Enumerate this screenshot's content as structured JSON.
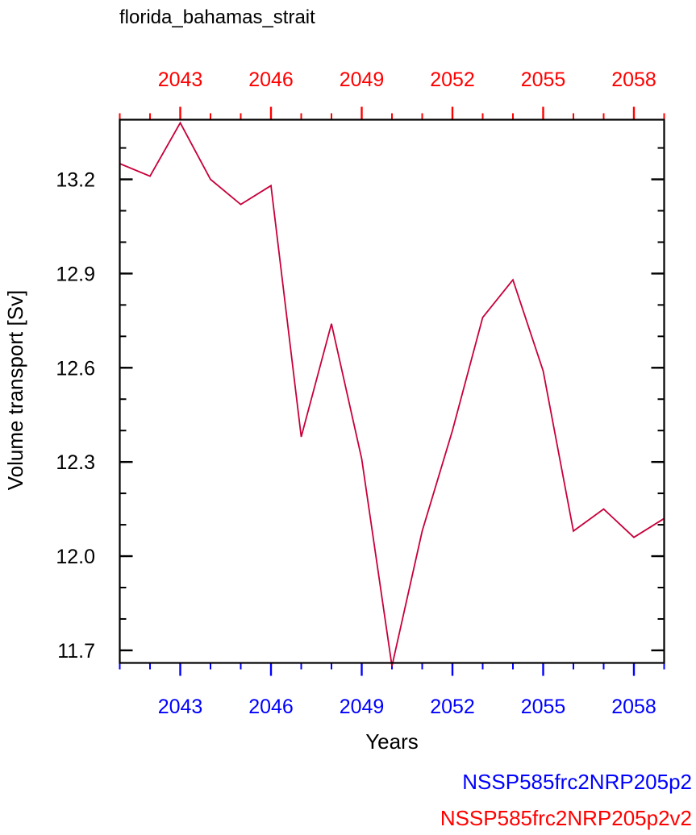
{
  "colors": {
    "bottom_axis": "#0000ff",
    "top_axis": "#ff0000",
    "line": "#c8003a",
    "frame": "#000000",
    "text": "#000000"
  },
  "chart_data": {
    "type": "line",
    "title": "florida_bahamas_strait",
    "xlabel": "Years",
    "ylabel": "Volume transport [Sv]",
    "xlim": [
      2041,
      2059
    ],
    "ylim": [
      11.66,
      13.39
    ],
    "x_ticks": [
      2043,
      2046,
      2049,
      2052,
      2055,
      2058
    ],
    "x_tick_labels": [
      "2043",
      "2046",
      "2049",
      "2052",
      "2055",
      "2058"
    ],
    "top_x_tick_labels": [
      "2043",
      "2046",
      "2049",
      "2052",
      "2055",
      "2058"
    ],
    "y_ticks": [
      11.7,
      12.0,
      12.3,
      12.6,
      12.9,
      13.2
    ],
    "y_tick_labels": [
      "11.7",
      "12.0",
      "12.3",
      "12.6",
      "12.9",
      "13.2"
    ],
    "grid": false,
    "legend": [
      {
        "name": "NSSP585frc2NRP205p2",
        "color": "#0000ff"
      },
      {
        "name": "NSSP585frc2NRP205p2v2",
        "color": "#ff0000"
      }
    ],
    "legend_position": "bottom-right",
    "series": [
      {
        "color": "#c8003a",
        "x": [
          2041,
          2042,
          2043,
          2044,
          2045,
          2046,
          2047,
          2048,
          2049,
          2050,
          2051,
          2052,
          2053,
          2054,
          2055,
          2056,
          2057,
          2058,
          2059
        ],
        "values": [
          13.25,
          13.21,
          13.38,
          13.2,
          13.12,
          13.18,
          12.38,
          12.74,
          12.31,
          11.65,
          12.08,
          12.4,
          12.76,
          12.88,
          12.59,
          12.08,
          12.15,
          12.06,
          12.12
        ]
      }
    ]
  }
}
